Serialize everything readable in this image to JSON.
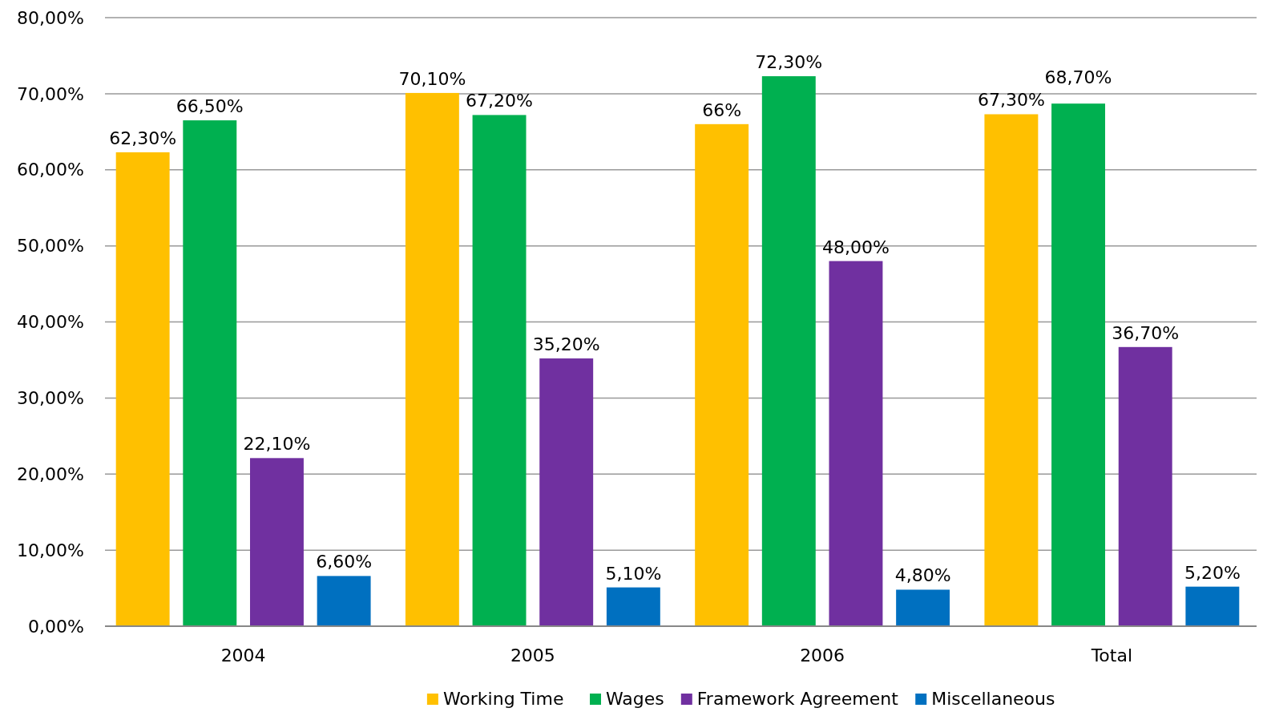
{
  "chart_data": {
    "type": "bar",
    "categories": [
      "2004",
      "2005",
      "2006",
      "Total"
    ],
    "series": [
      {
        "name": "Working Time",
        "color": "#ffc000",
        "values": [
          62.3,
          70.1,
          66,
          67.3
        ],
        "value_labels": [
          "62,30%",
          "70,10%",
          "66%",
          "67,30%"
        ]
      },
      {
        "name": "Wages",
        "color": "#00b050",
        "values": [
          66.5,
          67.2,
          72.3,
          68.7
        ],
        "value_labels": [
          "66,50%",
          "67,20%",
          "72,30%",
          "68,70%"
        ]
      },
      {
        "name": "Framework Agreement",
        "color": "#7030a0",
        "values": [
          22.1,
          35.2,
          48.0,
          36.7
        ],
        "value_labels": [
          "22,10%",
          "35,20%",
          "48,00%",
          "36,70%"
        ]
      },
      {
        "name": "Miscellaneous",
        "color": "#0070c0",
        "values": [
          6.6,
          5.1,
          4.8,
          5.2
        ],
        "value_labels": [
          "6,60%",
          "5,10%",
          "4,80%",
          "5,20%"
        ]
      }
    ],
    "ylim": [
      0,
      80
    ],
    "yticks": [
      {
        "value": 0,
        "label": "0,00%"
      },
      {
        "value": 10,
        "label": "10,00%"
      },
      {
        "value": 20,
        "label": "20,00%"
      },
      {
        "value": 30,
        "label": "30,00%"
      },
      {
        "value": 40,
        "label": "40,00%"
      },
      {
        "value": 50,
        "label": "50,00%"
      },
      {
        "value": 60,
        "label": "60,00%"
      },
      {
        "value": 70,
        "label": "70,00%"
      },
      {
        "value": 80,
        "label": "80,00%"
      }
    ],
    "grid": "y",
    "legend": "bottom"
  }
}
